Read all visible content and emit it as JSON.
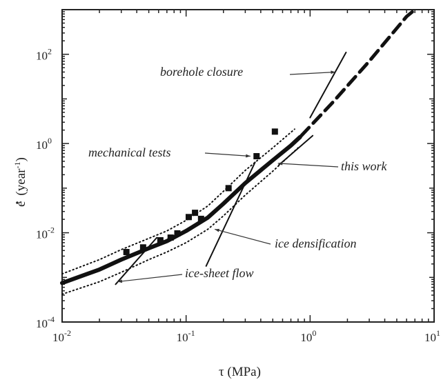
{
  "chart_data": {
    "type": "line",
    "title": "",
    "xlabel": "τ (MPa)",
    "ylabel_main": "e",
    "ylabel_open": "(year",
    "ylabel_exp": "-1",
    "ylabel_close": ")",
    "xscale": "log",
    "yscale": "log",
    "xlim": [
      0.01,
      10
    ],
    "ylim": [
      0.0001,
      1000
    ],
    "grid": false,
    "x_ticks": [
      {
        "base": "10",
        "exp": "-2",
        "value": 0.01
      },
      {
        "base": "10",
        "exp": "-1",
        "value": 0.1
      },
      {
        "base": "10",
        "exp": "0",
        "value": 1
      },
      {
        "base": "10",
        "exp": "1",
        "value": 10
      }
    ],
    "y_ticks": [
      {
        "base": "10",
        "exp": "-4",
        "value": 0.0001
      },
      {
        "base": "10",
        "exp": "-2",
        "value": 0.01
      },
      {
        "base": "10",
        "exp": "0",
        "value": 1
      },
      {
        "base": "10",
        "exp": "2",
        "value": 100
      }
    ],
    "series": [
      {
        "style": "thick-solid",
        "x": [
          0.01,
          0.02,
          0.03,
          0.05,
          0.07,
          0.1,
          0.15,
          0.2,
          0.3,
          0.5,
          0.7,
          0.83
        ],
        "y": [
          0.00075,
          0.0015,
          0.0025,
          0.0045,
          0.0065,
          0.011,
          0.022,
          0.045,
          0.13,
          0.42,
          0.9,
          1.4
        ]
      },
      {
        "style": "dashed-extension",
        "x": [
          0.85,
          1.5,
          3.0,
          6.0,
          7.0
        ],
        "y": [
          1.5,
          8.0,
          70.0,
          700.0,
          1000.0
        ]
      },
      {
        "style": "dotted-upper",
        "x": [
          0.01,
          0.02,
          0.03,
          0.05,
          0.07,
          0.1,
          0.15,
          0.2,
          0.3,
          0.5,
          0.75
        ],
        "y": [
          0.0012,
          0.0025,
          0.0042,
          0.0075,
          0.011,
          0.019,
          0.04,
          0.085,
          0.25,
          0.8,
          2.1
        ]
      },
      {
        "style": "dotted-lower",
        "x": [
          0.01,
          0.02,
          0.03,
          0.05,
          0.07,
          0.1,
          0.15,
          0.2,
          0.3,
          0.5,
          0.8
        ],
        "y": [
          0.00042,
          0.0008,
          0.0013,
          0.0025,
          0.0037,
          0.006,
          0.012,
          0.024,
          0.07,
          0.24,
          0.8
        ]
      },
      {
        "style": "thin-solid",
        "x": [
          0.027,
          0.058
        ],
        "y": [
          0.0007,
          0.0078
        ]
      },
      {
        "style": "thin-solid",
        "x": [
          0.145,
          0.36
        ],
        "y": [
          0.0018,
          0.38
        ]
      },
      {
        "style": "thin-solid",
        "x": [
          0.56,
          1.05
        ],
        "y": [
          0.33,
          1.5
        ]
      },
      {
        "style": "thin-solid",
        "x": [
          1.0,
          1.95
        ],
        "y": [
          3.8,
          110.0
        ]
      }
    ],
    "scatter": {
      "x": [
        0.033,
        0.045,
        0.062,
        0.075,
        0.085,
        0.105,
        0.118,
        0.132,
        0.22,
        0.37,
        0.52
      ],
      "y": [
        0.0037,
        0.0047,
        0.0068,
        0.0078,
        0.0097,
        0.0225,
        0.028,
        0.0205,
        0.1,
        0.52,
        1.85
      ]
    },
    "annotations": [
      {
        "text": "borehole closure",
        "arrow_to": [
          1.6,
          40.0
        ]
      },
      {
        "text": "mechanical tests",
        "arrow_to": [
          0.33,
          0.52
        ]
      },
      {
        "text": "this work",
        "arrow_to": [
          0.55,
          0.36
        ]
      },
      {
        "text": "ice densification",
        "arrow_to": [
          0.17,
          0.012
        ]
      },
      {
        "text": "ice-sheet flow",
        "arrow_to": [
          0.028,
          0.0008
        ]
      }
    ]
  }
}
